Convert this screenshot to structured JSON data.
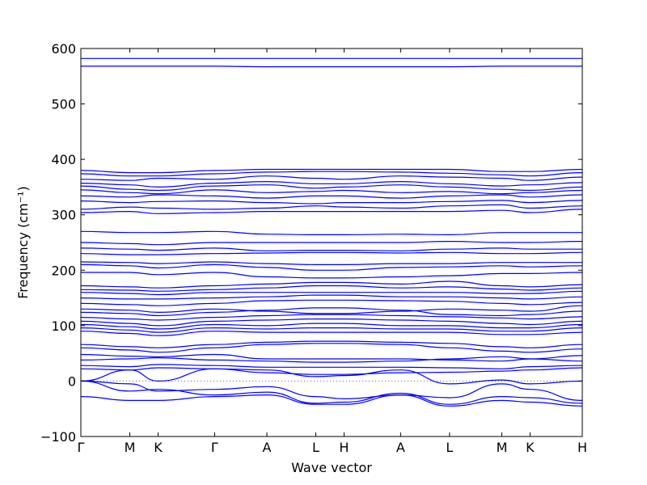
{
  "chart_data": {
    "type": "line",
    "title": "",
    "xlabel": "Wave vector",
    "ylabel": "Frequency (cm⁻¹)",
    "ylim": [
      -100,
      600
    ],
    "yticks": [
      -100,
      0,
      100,
      200,
      300,
      400,
      500,
      600
    ],
    "xticks": [
      {
        "label": "Γ",
        "x": 0
      },
      {
        "label": "M",
        "x": 1
      },
      {
        "label": "K",
        "x": 1.577
      },
      {
        "label": "Γ",
        "x": 2.732
      },
      {
        "label": "A",
        "x": 3.799
      },
      {
        "label": "L",
        "x": 4.799
      },
      {
        "label": "H",
        "x": 5.376
      },
      {
        "label": "A",
        "x": 6.531
      },
      {
        "label": "L",
        "x": 7.531
      },
      {
        "label": "M",
        "x": 8.598
      },
      {
        "label": "K",
        "x": 9.175
      },
      {
        "label": "H",
        "x": 10.242
      }
    ],
    "zero_line": true,
    "grid": false,
    "color": "#0000ff",
    "series": [
      {
        "x": [
          0,
          1,
          1.577,
          2.732,
          3.799,
          4.799,
          5.376,
          6.531,
          7.531,
          8.598,
          9.175,
          10.242
        ],
        "values": [
          582,
          582,
          582,
          582,
          582,
          582,
          582,
          582,
          582,
          582,
          582,
          582
        ]
      },
      {
        "x": [
          0,
          1,
          1.577,
          2.732,
          3.799,
          4.799,
          5.376,
          6.531,
          7.531,
          8.598,
          9.175,
          10.242
        ],
        "values": [
          568,
          568,
          568,
          568,
          567,
          567,
          567,
          567,
          567,
          568,
          568,
          568
        ]
      },
      {
        "x": [
          0,
          1,
          1.577,
          2.732,
          3.799,
          4.799,
          5.376,
          6.531,
          7.531,
          8.598,
          9.175,
          10.242
        ],
        "values": [
          380,
          376,
          376,
          380,
          382,
          382,
          382,
          382,
          382,
          378,
          378,
          382
        ]
      },
      {
        "x": [
          0,
          1,
          1.577,
          2.732,
          3.799,
          4.799,
          5.376,
          6.531,
          7.531,
          8.598,
          9.175,
          10.242
        ],
        "values": [
          374,
          370,
          370,
          374,
          377,
          378,
          378,
          377,
          375,
          372,
          370,
          376
        ]
      },
      {
        "x": [
          0,
          1,
          1.577,
          2.732,
          3.799,
          4.799,
          5.376,
          6.531,
          7.531,
          8.598,
          9.175,
          10.242
        ],
        "values": [
          364,
          362,
          366,
          364,
          370,
          366,
          364,
          370,
          368,
          366,
          362,
          368
        ]
      },
      {
        "x": [
          0,
          1,
          1.577,
          2.732,
          3.799,
          4.799,
          5.376,
          6.531,
          7.531,
          8.598,
          9.175,
          10.242
        ],
        "values": [
          357,
          354,
          350,
          357,
          360,
          356,
          356,
          360,
          356,
          352,
          354,
          358
        ]
      },
      {
        "x": [
          0,
          1,
          1.577,
          2.732,
          3.799,
          4.799,
          5.376,
          6.531,
          7.531,
          8.598,
          9.175,
          10.242
        ],
        "values": [
          352,
          346,
          344,
          352,
          354,
          348,
          350,
          354,
          350,
          346,
          344,
          350
        ]
      },
      {
        "x": [
          0,
          1,
          1.577,
          2.732,
          3.799,
          4.799,
          5.376,
          6.531,
          7.531,
          8.598,
          9.175,
          10.242
        ],
        "values": [
          345,
          340,
          338,
          345,
          340,
          342,
          344,
          340,
          342,
          338,
          340,
          344
        ]
      },
      {
        "x": [
          0,
          1,
          1.577,
          2.732,
          3.799,
          4.799,
          5.376,
          6.531,
          7.531,
          8.598,
          9.175,
          10.242
        ],
        "values": [
          334,
          332,
          336,
          334,
          330,
          334,
          334,
          330,
          334,
          336,
          332,
          336
        ]
      },
      {
        "x": [
          0,
          1,
          1.577,
          2.732,
          3.799,
          4.799,
          5.376,
          6.531,
          7.531,
          8.598,
          9.175,
          10.242
        ],
        "values": [
          325,
          322,
          324,
          325,
          322,
          320,
          322,
          322,
          324,
          326,
          322,
          326
        ]
      },
      {
        "x": [
          0,
          1,
          1.577,
          2.732,
          3.799,
          4.799,
          5.376,
          6.531,
          7.531,
          8.598,
          9.175,
          10.242
        ],
        "values": [
          310,
          314,
          312,
          310,
          312,
          316,
          314,
          312,
          316,
          318,
          312,
          316
        ]
      },
      {
        "x": [
          0,
          1,
          1.577,
          2.732,
          3.799,
          4.799,
          5.376,
          6.531,
          7.531,
          8.598,
          9.175,
          10.242
        ],
        "values": [
          304,
          306,
          302,
          304,
          306,
          306,
          306,
          306,
          306,
          308,
          304,
          310
        ]
      },
      {
        "x": [
          0,
          1,
          1.577,
          2.732,
          3.799,
          4.799,
          5.376,
          6.531,
          7.531,
          8.598,
          9.175,
          10.242
        ],
        "values": [
          270,
          268,
          268,
          270,
          265,
          264,
          264,
          265,
          264,
          268,
          268,
          268
        ]
      },
      {
        "x": [
          0,
          1,
          1.577,
          2.732,
          3.799,
          4.799,
          5.376,
          6.531,
          7.531,
          8.598,
          9.175,
          10.242
        ],
        "values": [
          250,
          248,
          246,
          250,
          250,
          250,
          250,
          250,
          252,
          250,
          250,
          252
        ]
      },
      {
        "x": [
          0,
          1,
          1.577,
          2.732,
          3.799,
          4.799,
          5.376,
          6.531,
          7.531,
          8.598,
          9.175,
          10.242
        ],
        "values": [
          240,
          238,
          236,
          240,
          235,
          236,
          236,
          235,
          238,
          240,
          238,
          238
        ]
      },
      {
        "x": [
          0,
          1,
          1.577,
          2.732,
          3.799,
          4.799,
          5.376,
          6.531,
          7.531,
          8.598,
          9.175,
          10.242
        ],
        "values": [
          230,
          228,
          228,
          230,
          231,
          232,
          232,
          231,
          232,
          230,
          230,
          232
        ]
      },
      {
        "x": [
          0,
          1,
          1.577,
          2.732,
          3.799,
          4.799,
          5.376,
          6.531,
          7.531,
          8.598,
          9.175,
          10.242
        ],
        "values": [
          215,
          214,
          212,
          215,
          212,
          210,
          210,
          212,
          212,
          214,
          214,
          214
        ]
      },
      {
        "x": [
          0,
          1,
          1.577,
          2.732,
          3.799,
          4.799,
          5.376,
          6.531,
          7.531,
          8.598,
          9.175,
          10.242
        ],
        "values": [
          210,
          208,
          204,
          210,
          205,
          200,
          200,
          205,
          206,
          208,
          206,
          208
        ]
      },
      {
        "x": [
          0,
          1,
          1.577,
          2.732,
          3.799,
          4.799,
          5.376,
          6.531,
          7.531,
          8.598,
          9.175,
          10.242
        ],
        "values": [
          196,
          196,
          192,
          196,
          188,
          186,
          186,
          188,
          190,
          194,
          194,
          196
        ]
      },
      {
        "x": [
          0,
          1,
          1.577,
          2.732,
          3.799,
          4.799,
          5.376,
          6.531,
          7.531,
          8.598,
          9.175,
          10.242
        ],
        "values": [
          172,
          170,
          168,
          172,
          175,
          178,
          178,
          175,
          180,
          172,
          170,
          174
        ]
      },
      {
        "x": [
          0,
          1,
          1.577,
          2.732,
          3.799,
          4.799,
          5.376,
          6.531,
          7.531,
          8.598,
          9.175,
          10.242
        ],
        "values": [
          165,
          164,
          162,
          165,
          168,
          172,
          172,
          168,
          170,
          166,
          164,
          168
        ]
      },
      {
        "x": [
          0,
          1,
          1.577,
          2.732,
          3.799,
          4.799,
          5.376,
          6.531,
          7.531,
          8.598,
          9.175,
          10.242
        ],
        "values": [
          160,
          158,
          156,
          160,
          160,
          160,
          160,
          160,
          160,
          158,
          158,
          162
        ]
      },
      {
        "x": [
          0,
          1,
          1.577,
          2.732,
          3.799,
          4.799,
          5.376,
          6.531,
          7.531,
          8.598,
          9.175,
          10.242
        ],
        "values": [
          150,
          148,
          148,
          150,
          152,
          155,
          155,
          152,
          152,
          150,
          148,
          152
        ]
      },
      {
        "x": [
          0,
          1,
          1.577,
          2.732,
          3.799,
          4.799,
          5.376,
          6.531,
          7.531,
          8.598,
          9.175,
          10.242
        ],
        "values": [
          140,
          138,
          136,
          140,
          145,
          146,
          146,
          145,
          144,
          140,
          138,
          142
        ]
      },
      {
        "x": [
          0,
          1,
          1.577,
          2.732,
          3.799,
          4.799,
          5.376,
          6.531,
          7.531,
          8.598,
          9.175,
          10.242
        ],
        "values": [
          130,
          128,
          124,
          130,
          126,
          122,
          122,
          126,
          130,
          128,
          126,
          136
        ]
      },
      {
        "x": [
          0,
          1,
          1.577,
          2.732,
          3.799,
          4.799,
          5.376,
          6.531,
          7.531,
          8.598,
          9.175,
          10.242
        ],
        "values": [
          124,
          122,
          118,
          124,
          128,
          132,
          132,
          128,
          120,
          118,
          120,
          126
        ]
      },
      {
        "x": [
          0,
          1,
          1.577,
          2.732,
          3.799,
          4.799,
          5.376,
          6.531,
          7.531,
          8.598,
          9.175,
          10.242
        ],
        "values": [
          115,
          112,
          110,
          115,
          118,
          120,
          120,
          118,
          116,
          114,
          112,
          116
        ]
      },
      {
        "x": [
          0,
          1,
          1.577,
          2.732,
          3.799,
          4.799,
          5.376,
          6.531,
          7.531,
          8.598,
          9.175,
          10.242
        ],
        "values": [
          108,
          104,
          100,
          108,
          110,
          112,
          112,
          110,
          108,
          104,
          102,
          108
        ]
      },
      {
        "x": [
          0,
          1,
          1.577,
          2.732,
          3.799,
          4.799,
          5.376,
          6.531,
          7.531,
          8.598,
          9.175,
          10.242
        ],
        "values": [
          102,
          98,
          94,
          102,
          100,
          104,
          104,
          100,
          100,
          96,
          96,
          102
        ]
      },
      {
        "x": [
          0,
          1,
          1.577,
          2.732,
          3.799,
          4.799,
          5.376,
          6.531,
          7.531,
          8.598,
          9.175,
          10.242
        ],
        "values": [
          96,
          92,
          88,
          96,
          94,
          96,
          96,
          94,
          94,
          90,
          90,
          96
        ]
      },
      {
        "x": [
          0,
          1,
          1.577,
          2.732,
          3.799,
          4.799,
          5.376,
          6.531,
          7.531,
          8.598,
          9.175,
          10.242
        ],
        "values": [
          90,
          86,
          82,
          90,
          88,
          88,
          88,
          88,
          88,
          84,
          84,
          88
        ]
      },
      {
        "x": [
          0,
          1,
          1.577,
          2.732,
          3.799,
          4.799,
          5.376,
          6.531,
          7.531,
          8.598,
          9.175,
          10.242
        ],
        "values": [
          66,
          62,
          60,
          66,
          70,
          72,
          72,
          70,
          68,
          62,
          60,
          66
        ]
      },
      {
        "x": [
          0,
          1,
          1.577,
          2.732,
          3.799,
          4.799,
          5.376,
          6.531,
          7.531,
          8.598,
          9.175,
          10.242
        ],
        "values": [
          60,
          56,
          52,
          60,
          66,
          68,
          68,
          66,
          60,
          54,
          52,
          58
        ]
      },
      {
        "x": [
          0,
          1,
          1.577,
          2.732,
          3.799,
          4.799,
          5.376,
          6.531,
          7.531,
          8.598,
          9.175,
          10.242
        ],
        "values": [
          48,
          45,
          44,
          48,
          40,
          40,
          40,
          40,
          38,
          36,
          40,
          46
        ]
      },
      {
        "x": [
          0,
          1,
          1.577,
          2.732,
          3.799,
          4.799,
          5.376,
          6.531,
          7.531,
          8.598,
          9.175,
          10.242
        ],
        "values": [
          38,
          40,
          42,
          38,
          36,
          34,
          34,
          36,
          40,
          44,
          40,
          36
        ]
      },
      {
        "x": [
          0,
          1,
          1.577,
          2.732,
          3.799,
          4.799,
          5.376,
          6.531,
          7.531,
          8.598,
          9.175,
          10.242
        ],
        "values": [
          28,
          26,
          30,
          28,
          25,
          25,
          25,
          25,
          24,
          22,
          26,
          28
        ]
      },
      {
        "x": [
          0,
          1,
          1.577,
          2.732,
          3.799,
          4.799,
          5.376,
          6.531,
          7.531,
          8.598,
          9.175,
          10.242
        ],
        "values": [
          22,
          20,
          24,
          22,
          15,
          12,
          12,
          15,
          16,
          18,
          20,
          24
        ]
      },
      {
        "x": [
          0,
          1,
          1.577,
          2.732,
          3.799,
          4.799,
          5.376,
          6.531,
          7.531,
          8.598,
          9.175,
          10.242
        ],
        "values": [
          0,
          20,
          0,
          22,
          20,
          8,
          10,
          20,
          -5,
          2,
          -5,
          0
        ]
      },
      {
        "x": [
          0,
          1,
          1.577,
          2.732,
          3.799,
          4.799,
          5.376,
          6.531,
          7.531,
          8.598,
          9.175,
          10.242
        ],
        "values": [
          0,
          -5,
          -18,
          -15,
          -10,
          -28,
          -32,
          -25,
          -30,
          -5,
          -15,
          -35
        ]
      },
      {
        "x": [
          0,
          1,
          1.577,
          2.732,
          3.799,
          4.799,
          5.376,
          6.531,
          7.531,
          8.598,
          9.175,
          10.242
        ],
        "values": [
          0,
          -18,
          -15,
          -25,
          -20,
          -40,
          -38,
          -22,
          -42,
          -28,
          -30,
          -40
        ]
      },
      {
        "x": [
          0,
          1,
          1.577,
          2.732,
          3.799,
          4.799,
          5.376,
          6.531,
          7.531,
          8.598,
          9.175,
          10.242
        ],
        "values": [
          -28,
          -35,
          -35,
          -28,
          -25,
          -42,
          -42,
          -25,
          -45,
          -35,
          -38,
          -45
        ]
      }
    ]
  }
}
